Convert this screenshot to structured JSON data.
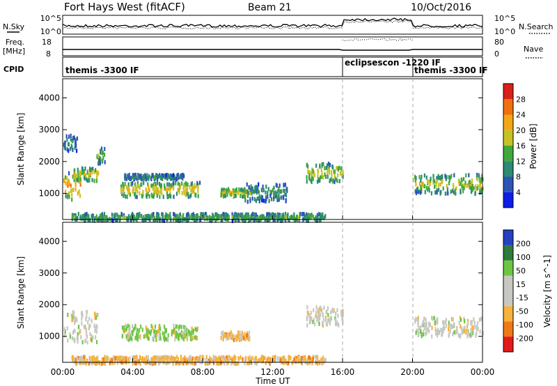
{
  "header": {
    "title": "Fort Hays West (fitACF)",
    "beam": "Beam 21",
    "date": "10/Oct/2016"
  },
  "noise_panel": {
    "left_label": "N.Sky",
    "left_ticks": [
      "10^5",
      "10^0"
    ],
    "right_label": "N.Search",
    "right_ticks": [
      "10^5",
      "10^0"
    ]
  },
  "freq_panel": {
    "left_label_line1": "Freq.",
    "left_label_line2": "[MHz]",
    "left_ticks": [
      "18",
      "8"
    ],
    "right_label": "Nave",
    "right_ticks": [
      "80",
      "0"
    ]
  },
  "cpid_panel": {
    "label": "CPID",
    "segments": [
      {
        "text": "themis -3300 IF",
        "start_hr": 0
      },
      {
        "text": "eclipsescon -1220 IF",
        "start_hr": 16
      },
      {
        "text": "themis -3300 IF",
        "start_hr": 20
      }
    ]
  },
  "x_axis": {
    "label": "Time UT",
    "ticks": [
      "00:00",
      "04:00",
      "08:00",
      "12:00",
      "16:00",
      "20:00",
      "00:00"
    ],
    "range_hr": [
      0,
      24
    ]
  },
  "colors": {
    "power": [
      "#0b1fe6",
      "#2c55b6",
      "#2e8a72",
      "#41a83e",
      "#c7c224",
      "#f2a814",
      "#f0700f",
      "#d9201a"
    ],
    "velocity": [
      "#e31a1c",
      "#f07818",
      "#f5b23c",
      "#c8c8c2",
      "#c8c8c2",
      "#6cc644",
      "#2f7a3c",
      "#2540c0"
    ]
  },
  "chart_data": [
    {
      "type": "heatmap",
      "name": "power",
      "ylabel": "Slant Range [km]",
      "yticks": [
        1000,
        2000,
        3000,
        4000
      ],
      "ylim": [
        180,
        4600
      ],
      "colorbar": {
        "label": "Power [dB]",
        "ticks": [
          "4",
          "8",
          "12",
          "16",
          "20",
          "24",
          "28"
        ],
        "range": [
          0,
          32
        ]
      },
      "echo_regions": [
        {
          "t0": 0.0,
          "t1": 1.1,
          "r0": 850,
          "r1": 1700,
          "level": 0.8
        },
        {
          "t0": 0.6,
          "t1": 2.0,
          "r0": 1450,
          "r1": 1850,
          "level": 0.65
        },
        {
          "t0": 1.9,
          "t1": 2.4,
          "r0": 2000,
          "r1": 2500,
          "level": 0.5
        },
        {
          "t0": 3.3,
          "t1": 7.8,
          "r0": 950,
          "r1": 1400,
          "level": 0.7
        },
        {
          "t0": 3.5,
          "t1": 6.9,
          "r0": 1500,
          "r1": 1650,
          "level": 0.3
        },
        {
          "t0": 9.0,
          "t1": 10.7,
          "r0": 950,
          "r1": 1200,
          "level": 0.7
        },
        {
          "t0": 10.3,
          "t1": 12.8,
          "r0": 800,
          "r1": 1350,
          "level": 0.35
        },
        {
          "t0": 13.9,
          "t1": 16.0,
          "r0": 1400,
          "r1": 2000,
          "level": 0.6
        },
        {
          "t0": 20.0,
          "t1": 24.0,
          "r0": 1050,
          "r1": 1650,
          "level": 0.6
        },
        {
          "t0": 0.5,
          "t1": 15.0,
          "r0": 200,
          "r1": 420,
          "level": 0.45
        },
        {
          "t0": 0.0,
          "t1": 0.8,
          "r0": 2400,
          "r1": 2900,
          "level": 0.3
        }
      ]
    },
    {
      "type": "heatmap",
      "name": "velocity",
      "ylabel": "Slant Range [km]",
      "yticks": [
        1000,
        2000,
        3000,
        4000
      ],
      "ylim": [
        180,
        4600
      ],
      "colorbar": {
        "label": "Velocity [m s^-1]",
        "ticks": [
          "-200",
          "-100",
          "-50",
          "-15",
          "15",
          "50",
          "100",
          "200"
        ],
        "range": [
          -250,
          250
        ]
      },
      "echo_regions": [
        {
          "t0": 0.0,
          "t1": 2.0,
          "r0": 850,
          "r1": 1850,
          "vel": "low"
        },
        {
          "t0": 3.3,
          "t1": 7.8,
          "r0": 950,
          "r1": 1400,
          "vel": "pos"
        },
        {
          "t0": 9.0,
          "t1": 10.7,
          "r0": 950,
          "r1": 1200,
          "vel": "neg"
        },
        {
          "t0": 13.9,
          "t1": 16.0,
          "r0": 1400,
          "r1": 2000,
          "vel": "low"
        },
        {
          "t0": 20.0,
          "t1": 24.0,
          "r0": 1050,
          "r1": 1650,
          "vel": "low"
        },
        {
          "t0": 0.5,
          "t1": 15.0,
          "r0": 200,
          "r1": 420,
          "vel": "neg"
        }
      ]
    }
  ]
}
